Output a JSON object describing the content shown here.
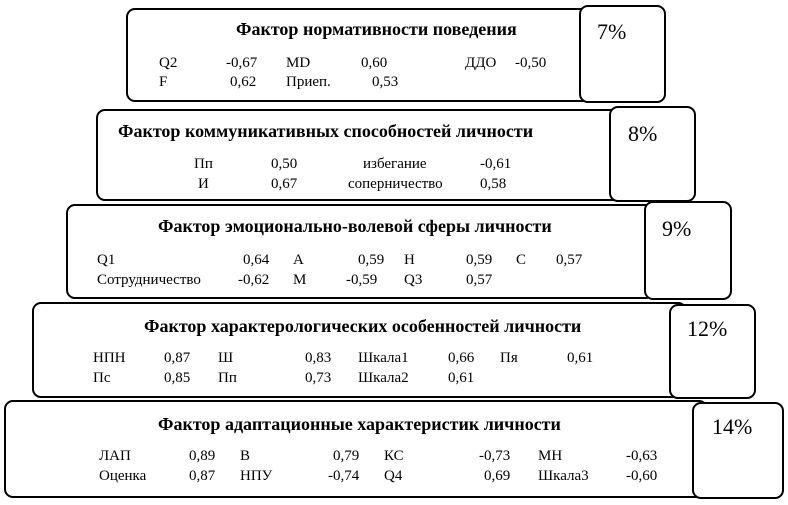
{
  "factors": [
    {
      "title": "Фактор нормативности поведения",
      "percent": "7%",
      "rows": [
        [
          "Q2",
          "-0,67",
          "MD",
          "0,60",
          "ДДО",
          "-0,50"
        ],
        [
          "F",
          "0,62",
          "Приеп.",
          "0,53"
        ]
      ]
    },
    {
      "title": "Фактор коммуникативных способностей личности",
      "percent": "8%",
      "rows": [
        [
          "Пп",
          "0,50",
          "избегание",
          "-0,61"
        ],
        [
          "И",
          "0,67",
          "соперничество",
          "0,58"
        ]
      ]
    },
    {
      "title": "Фактор эмоционально-волевой сферы личности",
      "percent": "9%",
      "rows": [
        [
          "Q1",
          "0,64",
          "A",
          "0,59",
          "H",
          "0,59",
          "C",
          "0,57"
        ],
        [
          "Сотрудничество",
          "-0,62",
          "M",
          "-0,59",
          "Q3",
          "0,57"
        ]
      ]
    },
    {
      "title": "Фактор характерологических особенностей личности",
      "percent": "12%",
      "rows": [
        [
          "НПН",
          "0,87",
          "Ш",
          "0,83",
          "Шкала1",
          "0,66",
          "Пя",
          "0,61"
        ],
        [
          "Пс",
          "0,85",
          "Пп",
          "0,73",
          "Шкала2",
          "0,61"
        ]
      ]
    },
    {
      "title": "Фактор адаптационные характеристик личности",
      "percent": "14%",
      "rows": [
        [
          "ЛАП",
          "0,89",
          "B",
          "0,79",
          "КС",
          "-0,73",
          "МН",
          "-0,63"
        ],
        [
          "Оценка",
          "0,87",
          "НПУ",
          "-0,74",
          "Q4",
          "0,69",
          "Шкала3",
          "-0,60"
        ]
      ]
    }
  ]
}
